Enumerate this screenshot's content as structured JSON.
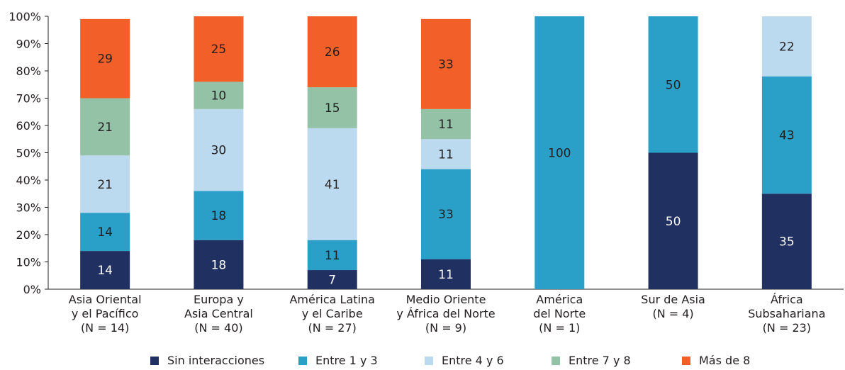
{
  "chart_data": {
    "type": "bar",
    "stacked": true,
    "categories": [
      [
        "Asia Oriental",
        "y el Pacífico",
        "(N = 14)"
      ],
      [
        "Europa y",
        "Asia Central",
        "(N = 40)"
      ],
      [
        "América Latina",
        "y el Caribe",
        "(N = 27)"
      ],
      [
        "Medio Oriente",
        "y África del Norte",
        "(N = 9)"
      ],
      [
        "América",
        "del Norte",
        "(N = 1)"
      ],
      [
        "Sur de Asia",
        "(N = 4)"
      ],
      [
        "África",
        "Subsahariana",
        "(N = 23)"
      ]
    ],
    "series": [
      {
        "name": "Sin interacciones",
        "color": "#203060",
        "label_color": "#ffffff",
        "values": [
          14,
          18,
          7,
          11,
          0,
          50,
          35
        ]
      },
      {
        "name": "Entre 1 y 3",
        "color": "#2aa0c8",
        "label_color": "#231f20",
        "values": [
          14,
          18,
          11,
          33,
          100,
          50,
          43
        ]
      },
      {
        "name": "Entre 4 y 6",
        "color": "#bcdaef",
        "label_color": "#231f20",
        "values": [
          21,
          30,
          41,
          11,
          0,
          0,
          22
        ]
      },
      {
        "name": "Entre 7 y 8",
        "color": "#94c2a7",
        "label_color": "#231f20",
        "values": [
          21,
          10,
          15,
          11,
          0,
          0,
          0
        ]
      },
      {
        "name": "Más de 8",
        "color": "#f25f29",
        "label_color": "#231f20",
        "values": [
          29,
          25,
          26,
          33,
          0,
          0,
          0
        ]
      }
    ],
    "y_ticks": [
      "0%",
      "10%",
      "20%",
      "30%",
      "40%",
      "50%",
      "60%",
      "70%",
      "80%",
      "90%",
      "100%"
    ],
    "ylim": [
      0,
      100
    ],
    "legend": "bottom",
    "grid": false
  }
}
